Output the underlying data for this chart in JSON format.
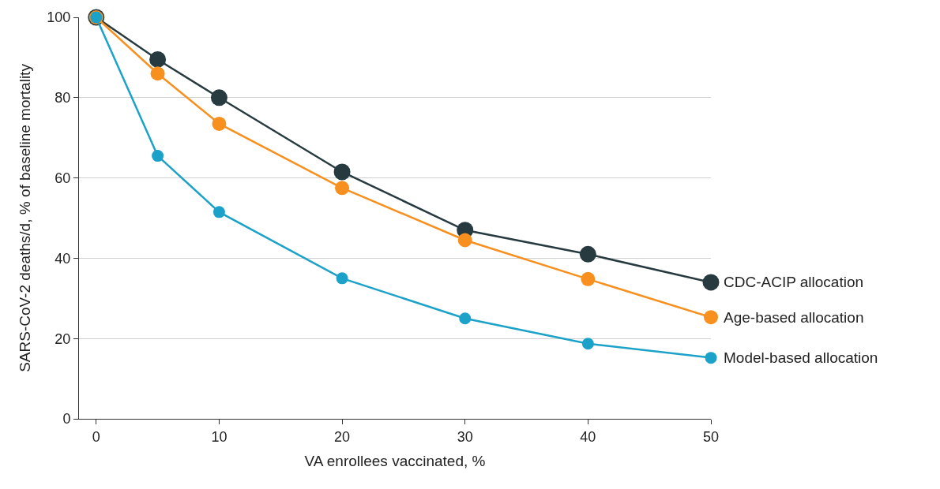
{
  "chart_data": {
    "type": "line",
    "xlabel": "VA enrollees vaccinated, %",
    "ylabel": "SARS-CoV-2 deaths/d, % of baseline mortality",
    "x": [
      0,
      5,
      10,
      20,
      30,
      40,
      50
    ],
    "series": [
      {
        "name": "CDC-ACIP allocation",
        "color": "#263a40",
        "values": [
          100,
          89.5,
          80,
          61.5,
          47,
          41,
          34
        ]
      },
      {
        "name": "Age-based allocation",
        "color": "#f7901e",
        "values": [
          100,
          86,
          73.5,
          57.5,
          44.5,
          34.8,
          25.3
        ]
      },
      {
        "name": "Model-based allocation",
        "color": "#1ca2c9",
        "values": [
          100,
          65.5,
          51.5,
          35,
          25,
          18.7,
          15.2
        ]
      }
    ],
    "xlim": [
      -1.4,
      50
    ],
    "xticks": [
      0,
      10,
      20,
      30,
      40,
      50
    ],
    "ylim": [
      0,
      100
    ],
    "yticks": [
      0,
      20,
      40,
      60,
      80,
      100
    ],
    "grid": "y",
    "marker": "circle",
    "line_style": "solid"
  }
}
